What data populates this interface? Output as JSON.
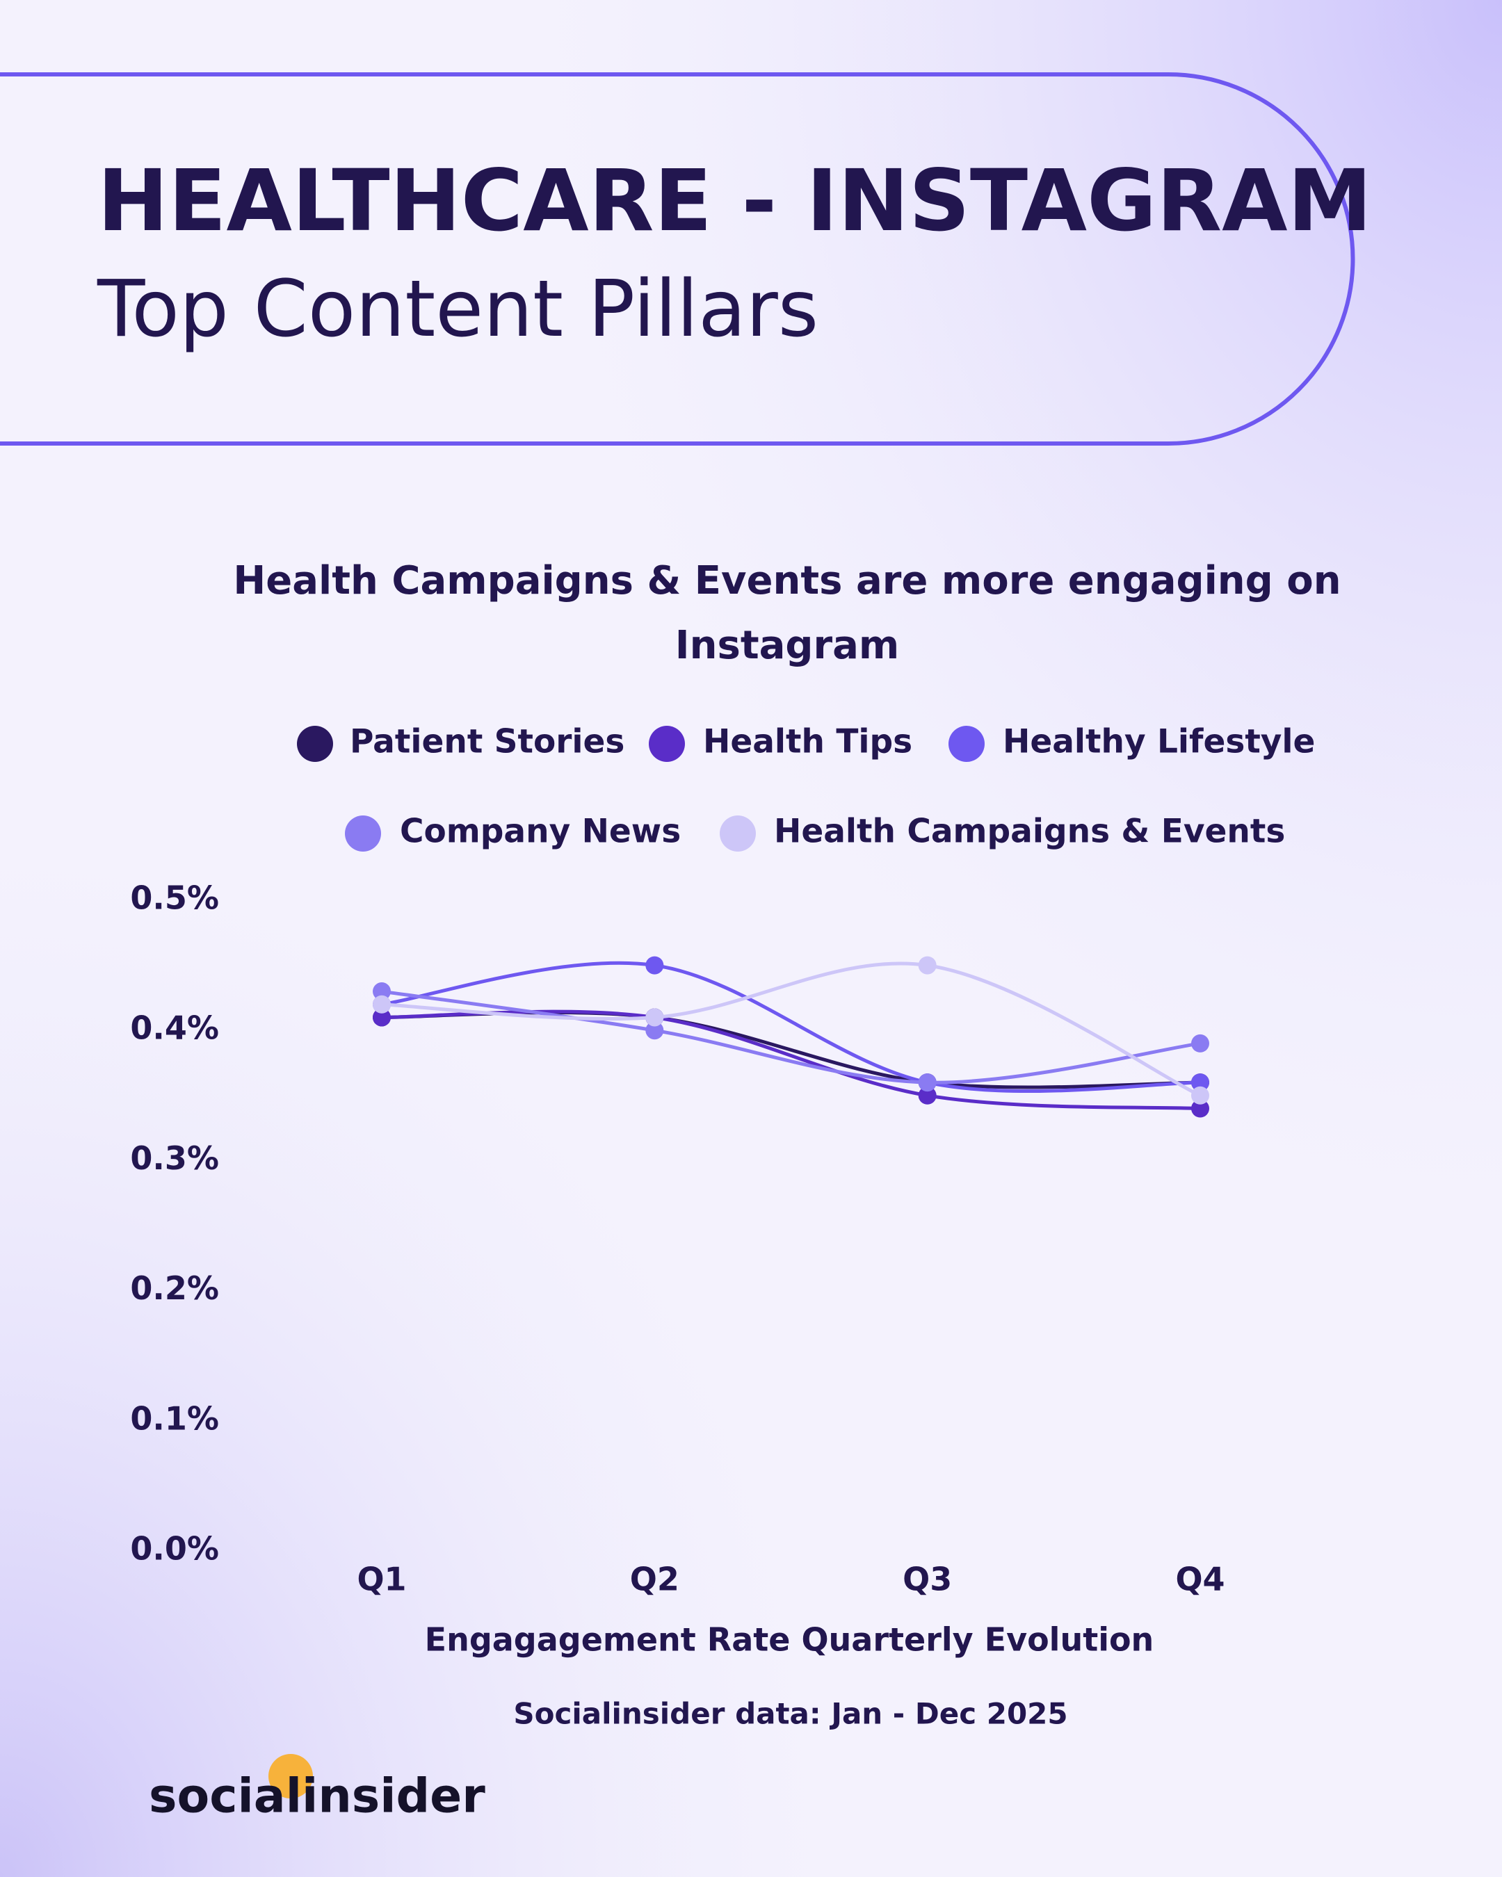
{
  "header": {
    "title": "HEALTHCARE - INSTAGRAM",
    "subtitle": "Top Content Pillars"
  },
  "chart_data": {
    "type": "line",
    "title_lines": [
      "Health Campaigns & Events are more engaging on",
      "Instagram"
    ],
    "x_label": "Engagagement Rate Quarterly Evolution",
    "categories": [
      "Q1",
      "Q2",
      "Q3",
      "Q4"
    ],
    "series": [
      {
        "name": "Patient Stories",
        "color": "#2a1860",
        "values": [
          0.41,
          0.41,
          0.36,
          0.36
        ]
      },
      {
        "name": "Health Tips",
        "color": "#5a2dc8",
        "values": [
          0.41,
          0.41,
          0.35,
          0.34
        ]
      },
      {
        "name": "Healthy Lifestyle",
        "color": "#6e58f0",
        "values": [
          0.42,
          0.45,
          0.36,
          0.36
        ]
      },
      {
        "name": "Company News",
        "color": "#8a7bf2",
        "values": [
          0.43,
          0.4,
          0.36,
          0.39
        ]
      },
      {
        "name": "Health Campaigns & Events",
        "color": "#cdc6f8",
        "values": [
          0.42,
          0.41,
          0.45,
          0.35
        ]
      }
    ],
    "ylim": [
      0,
      0.5
    ],
    "yticks": [
      {
        "value": 0,
        "label": "0.0%"
      },
      {
        "value": 0.1,
        "label": "0.1%"
      },
      {
        "value": 0.2,
        "label": "0.2%"
      },
      {
        "value": 0.3,
        "label": "0.3%"
      },
      {
        "value": 0.4,
        "label": "0.4%"
      },
      {
        "value": 0.5,
        "label": "0.5%"
      }
    ],
    "source": "Socialinsider data: Jan - Dec 2025"
  },
  "logo": "socialinsider"
}
